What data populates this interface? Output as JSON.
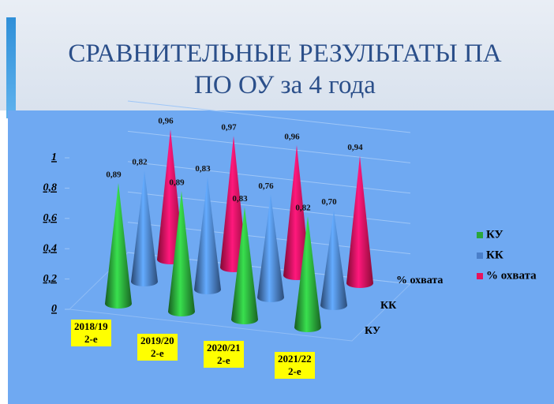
{
  "chart_data": {
    "type": "cone3d",
    "title": "СРАВНИТЕЛЬНЫЕ РЕЗУЛЬТАТЫ  ПА\nПО  ОУ за  4 года",
    "categories": [
      "2018/19\n2-е",
      "2019/20\n2-е",
      "2020/21\n2-е",
      "2021/22\n2-е"
    ],
    "series": [
      {
        "name": "КУ",
        "color": "#2aa63a",
        "values": [
          0.89,
          0.89,
          0.83,
          0.82
        ],
        "value_labels": [
          "0,89",
          "0,89",
          "0,83",
          "0,82"
        ]
      },
      {
        "name": "КК",
        "color": "#4a7fca",
        "values": [
          0.82,
          0.83,
          0.76,
          0.7
        ],
        "value_labels": [
          "0,82",
          "0,83",
          "0,76",
          "0,70"
        ]
      },
      {
        "name": "% охвата",
        "color": "#e8125c",
        "values": [
          0.96,
          0.97,
          0.96,
          0.94
        ],
        "value_labels": [
          "0,96",
          "0,97",
          "0,96",
          "0,94"
        ]
      }
    ],
    "ylim": [
      0,
      1
    ],
    "yticks": [
      0,
      {
        "value": 0.2,
        "label": "0,2"
      },
      {
        "value": 0.4,
        "label": "0,4"
      },
      {
        "value": 0.6,
        "label": "0,6"
      },
      {
        "value": 0.8,
        "label": "0,8"
      },
      1
    ],
    "legend": "right"
  }
}
